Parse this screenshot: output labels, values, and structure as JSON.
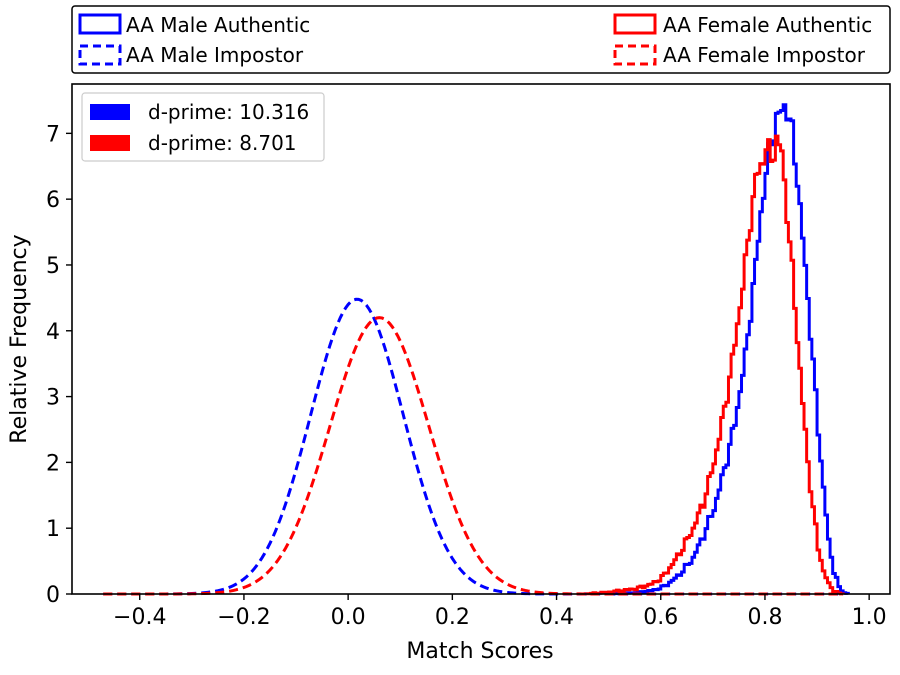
{
  "chart_data": {
    "type": "histogram",
    "title": "",
    "xlabel": "Match Scores",
    "ylabel": "Relative Frequency",
    "xlim": [
      -0.53,
      1.04
    ],
    "ylim": [
      0,
      7.75
    ],
    "x_ticks": [
      -0.4,
      -0.2,
      0.0,
      0.2,
      0.4,
      0.6,
      0.8,
      1.0
    ],
    "x_tick_labels": [
      "−0.4",
      "−0.2",
      "0.0",
      "0.2",
      "0.4",
      "0.6",
      "0.8",
      "1.0"
    ],
    "y_ticks": [
      0,
      1,
      2,
      3,
      4,
      5,
      6,
      7
    ],
    "y_tick_labels": [
      "0",
      "1",
      "2",
      "3",
      "4",
      "5",
      "6",
      "7"
    ],
    "grid": false,
    "top_legend": [
      {
        "label": "AA Male Authentic",
        "color": "#0000ff",
        "style": "solid"
      },
      {
        "label": "AA Female Authentic",
        "color": "#ff0000",
        "style": "solid"
      },
      {
        "label": "AA Male Impostor",
        "color": "#0000ff",
        "style": "dashed"
      },
      {
        "label": "AA Female Impostor",
        "color": "#ff0000",
        "style": "dashed"
      }
    ],
    "inner_legend": [
      {
        "label": "d-prime: 10.316",
        "color": "#0000ff"
      },
      {
        "label": "d-prime: 8.701",
        "color": "#ff0000"
      }
    ],
    "series": [
      {
        "name": "AA Male Authentic",
        "color": "#0000ff",
        "style": "solid",
        "x": [
          0.5,
          0.55,
          0.58,
          0.6,
          0.62,
          0.64,
          0.66,
          0.68,
          0.7,
          0.72,
          0.74,
          0.76,
          0.77,
          0.78,
          0.79,
          0.8,
          0.81,
          0.82,
          0.83,
          0.835,
          0.84,
          0.85,
          0.86,
          0.87,
          0.88,
          0.89,
          0.9,
          0.91,
          0.92,
          0.93,
          0.94,
          0.95,
          0.96
        ],
        "y": [
          0.0,
          0.02,
          0.05,
          0.1,
          0.2,
          0.35,
          0.55,
          0.9,
          1.3,
          1.9,
          2.6,
          3.6,
          4.3,
          5.0,
          5.8,
          6.4,
          6.9,
          7.2,
          7.35,
          7.42,
          7.35,
          7.0,
          6.3,
          5.4,
          4.5,
          3.5,
          2.5,
          1.6,
          0.8,
          0.35,
          0.1,
          0.02,
          0.0
        ]
      },
      {
        "name": "AA Female Authentic",
        "color": "#ff0000",
        "style": "solid",
        "x": [
          0.45,
          0.5,
          0.55,
          0.58,
          0.6,
          0.62,
          0.64,
          0.66,
          0.68,
          0.7,
          0.72,
          0.74,
          0.75,
          0.76,
          0.77,
          0.78,
          0.79,
          0.8,
          0.81,
          0.82,
          0.83,
          0.84,
          0.85,
          0.86,
          0.87,
          0.88,
          0.89,
          0.9,
          0.91,
          0.92,
          0.93,
          0.94,
          0.95
        ],
        "y": [
          0.0,
          0.03,
          0.08,
          0.15,
          0.25,
          0.45,
          0.7,
          1.0,
          1.4,
          2.0,
          2.8,
          3.8,
          4.4,
          5.0,
          5.7,
          6.3,
          6.5,
          6.8,
          6.6,
          6.9,
          6.7,
          5.8,
          4.9,
          3.9,
          2.9,
          2.0,
          1.3,
          0.7,
          0.35,
          0.15,
          0.05,
          0.01,
          0.0
        ]
      },
      {
        "name": "AA Male Impostor",
        "color": "#0000ff",
        "style": "dashed",
        "mean": 0.017,
        "sd": 0.089,
        "peak": 4.48,
        "range": [
          -0.47,
          0.95
        ]
      },
      {
        "name": "AA Female Impostor",
        "color": "#ff0000",
        "style": "dashed",
        "mean": 0.06,
        "sd": 0.095,
        "peak": 4.2,
        "range": [
          -0.47,
          0.95
        ]
      }
    ]
  }
}
